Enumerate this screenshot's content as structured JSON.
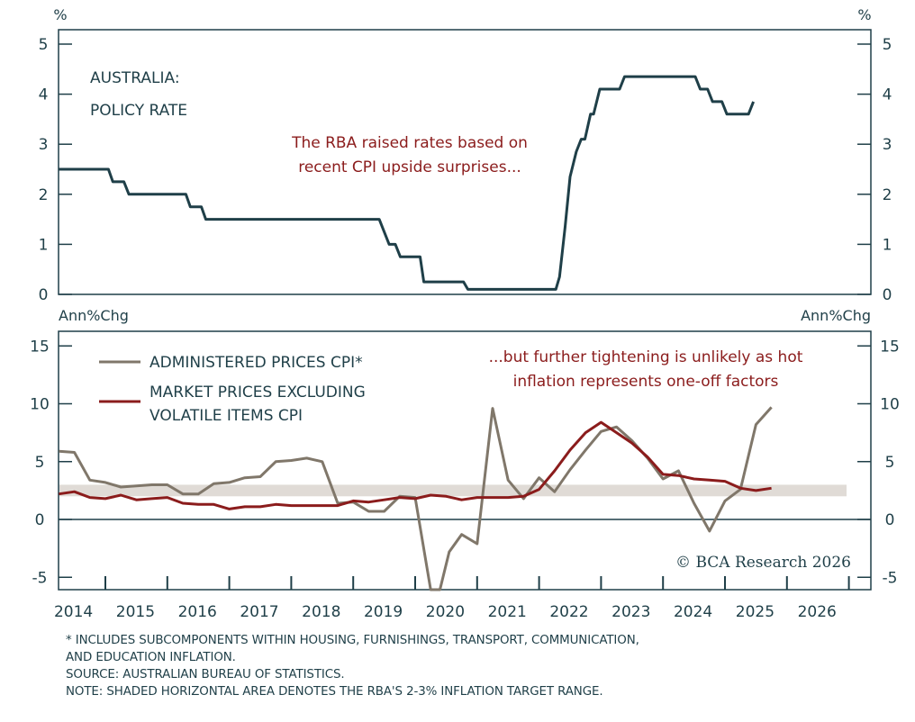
{
  "chart_data": [
    {
      "type": "line",
      "panel": "top",
      "title": "AUSTRALIA: POLICY RATE",
      "title_lines": [
        "AUSTRALIA:",
        "POLICY RATE"
      ],
      "left_unit": "%",
      "right_unit": "%",
      "ylim": [
        0,
        5.3
      ],
      "yticks": [
        0,
        1,
        2,
        3,
        4,
        5
      ],
      "grid": false,
      "annotation_lines": [
        "The RBA raised rates based on",
        "recent CPI upside surprises..."
      ],
      "series": [
        {
          "name": "Policy rate",
          "color": "#1f3f48",
          "points": [
            [
              2014.24,
              2.5
            ],
            [
              2015.05,
              2.5
            ],
            [
              2015.12,
              2.25
            ],
            [
              2015.3,
              2.25
            ],
            [
              2015.38,
              2.0
            ],
            [
              2016.3,
              2.0
            ],
            [
              2016.37,
              1.75
            ],
            [
              2016.55,
              1.75
            ],
            [
              2016.62,
              1.5
            ],
            [
              2019.42,
              1.5
            ],
            [
              2019.58,
              1.0
            ],
            [
              2019.68,
              1.0
            ],
            [
              2019.76,
              0.75
            ],
            [
              2020.08,
              0.75
            ],
            [
              2020.14,
              0.25
            ],
            [
              2020.78,
              0.25
            ],
            [
              2020.85,
              0.1
            ],
            [
              2022.27,
              0.1
            ],
            [
              2022.33,
              0.35
            ],
            [
              2022.42,
              1.35
            ],
            [
              2022.5,
              2.35
            ],
            [
              2022.6,
              2.85
            ],
            [
              2022.68,
              3.1
            ],
            [
              2022.74,
              3.1
            ],
            [
              2022.83,
              3.6
            ],
            [
              2022.88,
              3.6
            ],
            [
              2022.98,
              4.1
            ],
            [
              2023.3,
              4.1
            ],
            [
              2023.38,
              4.35
            ],
            [
              2024.52,
              4.35
            ],
            [
              2024.6,
              4.1
            ],
            [
              2024.72,
              4.1
            ],
            [
              2024.8,
              3.85
            ],
            [
              2024.95,
              3.85
            ],
            [
              2025.03,
              3.6
            ],
            [
              2025.38,
              3.6
            ],
            [
              2025.46,
              3.85
            ]
          ]
        }
      ]
    },
    {
      "type": "line",
      "panel": "bottom",
      "left_unit": "Ann%Chg",
      "right_unit": "Ann%Chg",
      "ylim": [
        -6.3,
        16.3
      ],
      "yticks": [
        -5,
        0,
        5,
        10,
        15
      ],
      "grid": false,
      "zero_line": true,
      "target_band": {
        "low": 2,
        "high": 3,
        "color": "#e0dbd6"
      },
      "annotation_lines": [
        "...but further tightening is unlikely as hot",
        "inflation represents one-off factors"
      ],
      "legend": {
        "placement": "top-left"
      },
      "series": [
        {
          "name": "ADMINISTERED PRICES CPI*",
          "legend_lines": [
            "ADMINISTERED PRICES CPI*"
          ],
          "color": "#80776a",
          "points": [
            [
              2014.25,
              5.9
            ],
            [
              2014.5,
              5.8
            ],
            [
              2014.75,
              3.4
            ],
            [
              2015.0,
              3.2
            ],
            [
              2015.25,
              2.8
            ],
            [
              2015.5,
              2.9
            ],
            [
              2015.75,
              3.0
            ],
            [
              2016.0,
              3.0
            ],
            [
              2016.25,
              2.2
            ],
            [
              2016.5,
              2.2
            ],
            [
              2016.75,
              3.1
            ],
            [
              2017.0,
              3.2
            ],
            [
              2017.25,
              3.6
            ],
            [
              2017.5,
              3.7
            ],
            [
              2017.75,
              5.0
            ],
            [
              2018.0,
              5.1
            ],
            [
              2018.25,
              5.3
            ],
            [
              2018.5,
              5.0
            ],
            [
              2018.75,
              1.4
            ],
            [
              2019.0,
              1.5
            ],
            [
              2019.25,
              0.7
            ],
            [
              2019.5,
              0.7
            ],
            [
              2019.75,
              2.0
            ],
            [
              2020.0,
              1.9
            ],
            [
              2020.25,
              -6.3
            ],
            [
              2020.4,
              -6.3
            ],
            [
              2020.55,
              -2.8
            ],
            [
              2020.75,
              -1.3
            ],
            [
              2021.0,
              -2.1
            ],
            [
              2021.25,
              9.6
            ],
            [
              2021.5,
              3.4
            ],
            [
              2021.75,
              1.8
            ],
            [
              2022.0,
              3.6
            ],
            [
              2022.25,
              2.4
            ],
            [
              2022.5,
              4.3
            ],
            [
              2022.75,
              6.0
            ],
            [
              2023.0,
              7.6
            ],
            [
              2023.25,
              8.0
            ],
            [
              2023.5,
              6.8
            ],
            [
              2023.75,
              5.3
            ],
            [
              2024.0,
              3.5
            ],
            [
              2024.25,
              4.2
            ],
            [
              2024.5,
              1.4
            ],
            [
              2024.75,
              -1.0
            ],
            [
              2025.0,
              1.6
            ],
            [
              2025.25,
              2.6
            ],
            [
              2025.5,
              8.2
            ],
            [
              2025.75,
              9.7
            ]
          ]
        },
        {
          "name": "MARKET PRICES EXCLUDING VOLATILE ITEMS CPI",
          "legend_lines": [
            "MARKET PRICES EXCLUDING",
            "VOLATILE ITEMS CPI"
          ],
          "color": "#8b1c1c",
          "points": [
            [
              2014.25,
              2.2
            ],
            [
              2014.5,
              2.4
            ],
            [
              2014.75,
              1.9
            ],
            [
              2015.0,
              1.8
            ],
            [
              2015.25,
              2.1
            ],
            [
              2015.5,
              1.7
            ],
            [
              2015.75,
              1.8
            ],
            [
              2016.0,
              1.9
            ],
            [
              2016.25,
              1.4
            ],
            [
              2016.5,
              1.3
            ],
            [
              2016.75,
              1.3
            ],
            [
              2017.0,
              0.9
            ],
            [
              2017.25,
              1.1
            ],
            [
              2017.5,
              1.1
            ],
            [
              2017.75,
              1.3
            ],
            [
              2018.0,
              1.2
            ],
            [
              2018.25,
              1.2
            ],
            [
              2018.5,
              1.2
            ],
            [
              2018.75,
              1.2
            ],
            [
              2019.0,
              1.6
            ],
            [
              2019.25,
              1.5
            ],
            [
              2019.5,
              1.7
            ],
            [
              2019.75,
              1.9
            ],
            [
              2020.0,
              1.8
            ],
            [
              2020.25,
              2.1
            ],
            [
              2020.5,
              2.0
            ],
            [
              2020.75,
              1.7
            ],
            [
              2021.0,
              1.9
            ],
            [
              2021.25,
              1.9
            ],
            [
              2021.5,
              1.9
            ],
            [
              2021.75,
              2.0
            ],
            [
              2022.0,
              2.6
            ],
            [
              2022.25,
              4.2
            ],
            [
              2022.5,
              6.0
            ],
            [
              2022.75,
              7.5
            ],
            [
              2023.0,
              8.4
            ],
            [
              2023.25,
              7.5
            ],
            [
              2023.5,
              6.6
            ],
            [
              2023.75,
              5.4
            ],
            [
              2024.0,
              3.9
            ],
            [
              2024.25,
              3.8
            ],
            [
              2024.5,
              3.5
            ],
            [
              2024.75,
              3.4
            ],
            [
              2025.0,
              3.3
            ],
            [
              2025.25,
              2.7
            ],
            [
              2025.5,
              2.5
            ],
            [
              2025.75,
              2.7
            ]
          ]
        }
      ]
    }
  ],
  "x_axis": {
    "range": [
      2014.24,
      2027.3
    ],
    "tick_boundaries": [
      2015,
      2016,
      2017,
      2018,
      2019,
      2020,
      2021,
      2022,
      2023,
      2024,
      2025,
      2026,
      2027
    ],
    "labels": [
      "2014",
      "2015",
      "2016",
      "2017",
      "2018",
      "2019",
      "2020",
      "2021",
      "2022",
      "2023",
      "2024",
      "2025",
      "2026"
    ]
  },
  "copyright": "© BCA Research 2026",
  "footnotes": [
    "* INCLUDES SUBCOMPONENTS WITHIN HOUSING, FURNISHINGS, TRANSPORT, COMMUNICATION,",
    "AND EDUCATION INFLATION.",
    "SOURCE: AUSTRALIAN BUREAU OF STATISTICS.",
    "NOTE: SHADED HORIZONTAL AREA DENOTES THE RBA'S 2-3% INFLATION TARGET RANGE."
  ],
  "colors": {
    "axis": "#1f3f48",
    "policy": "#1f3f48",
    "administered": "#80776a",
    "market": "#8b1c1c",
    "band": "#e0dbd6",
    "annotation": "#8b1c1c"
  }
}
